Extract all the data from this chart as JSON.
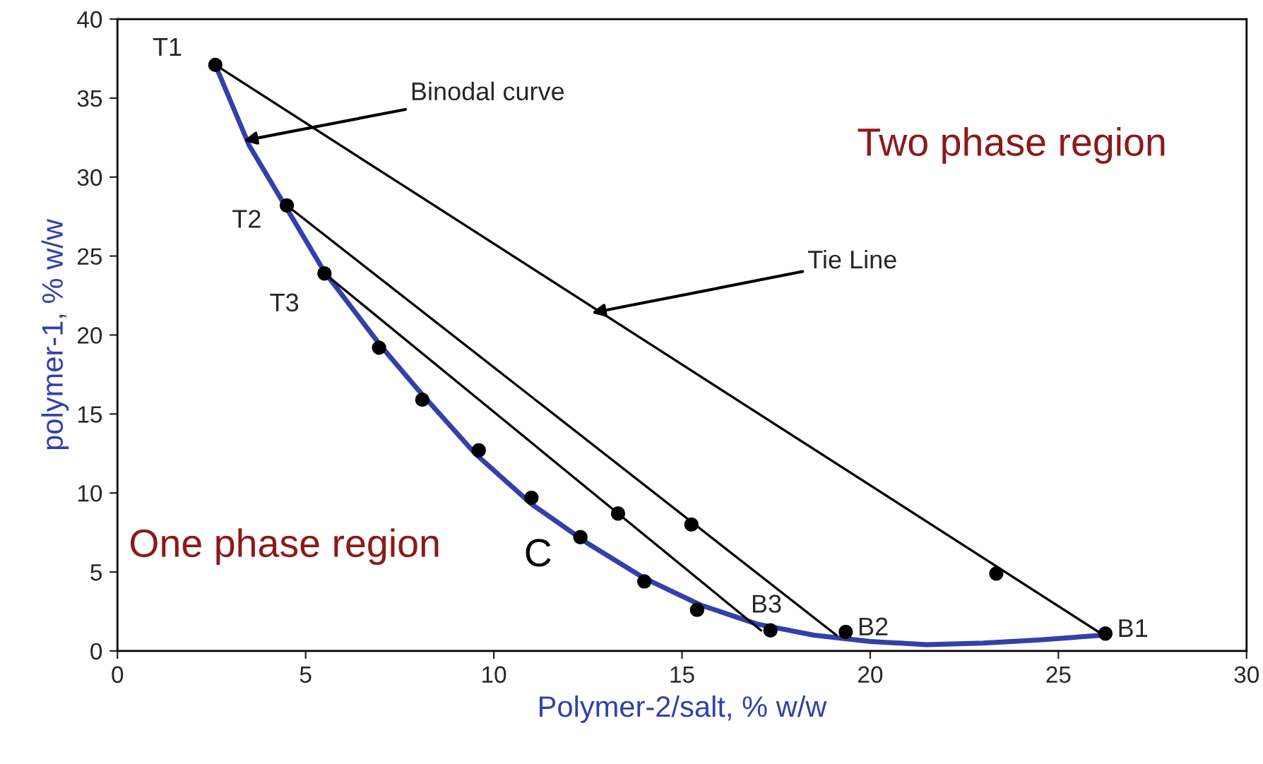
{
  "chart_data": {
    "type": "scatter",
    "xlabel": "Polymer-2/salt, % w/w",
    "ylabel": "polymer-1, % w/w",
    "xlim": [
      0,
      30
    ],
    "xticks": [
      0,
      5,
      10,
      15,
      20,
      25,
      30
    ],
    "ylim": [
      0,
      40
    ],
    "yticks": [
      0,
      5,
      10,
      15,
      20,
      25,
      30,
      35,
      40
    ],
    "grid": false,
    "legend": false,
    "series": [
      {
        "type": "line",
        "color": "#3340a8",
        "marker": "none",
        "x": [
          2.6,
          3.5,
          4.5,
          5.5,
          7,
          8,
          9.5,
          11,
          12.5,
          14,
          15.5,
          17,
          18.5,
          20,
          21.5,
          23,
          24.5,
          26.2
        ],
        "values": [
          37.1,
          32,
          28,
          24,
          19.3,
          16.5,
          12.5,
          9.3,
          6.8,
          4.6,
          2.9,
          1.7,
          1.0,
          0.6,
          0.4,
          0.5,
          0.7,
          1.0
        ]
      },
      {
        "type": "line",
        "color": "#000000",
        "marker": "none",
        "x": [
          2.6,
          26.2
        ],
        "values": [
          37.1,
          1.0
        ]
      },
      {
        "type": "line",
        "color": "#000000",
        "marker": "none",
        "x": [
          4.5,
          19.1
        ],
        "values": [
          28.2,
          1.0
        ]
      },
      {
        "type": "line",
        "color": "#000000",
        "marker": "none",
        "x": [
          5.5,
          17.1
        ],
        "values": [
          23.9,
          1.3
        ]
      },
      {
        "color": "#000000",
        "marker": "circle",
        "x": [
          2.6,
          4.5,
          5.5,
          6.95,
          8.1,
          9.6,
          11.0,
          12.3,
          14.0,
          15.4,
          17.35,
          19.35,
          26.25,
          13.3,
          15.25,
          23.35
        ],
        "values": [
          37.1,
          28.2,
          23.9,
          19.2,
          15.9,
          12.7,
          9.7,
          7.2,
          4.4,
          2.6,
          1.3,
          1.2,
          1.1,
          8.7,
          8.0,
          4.9
        ]
      }
    ],
    "annotations": [
      {
        "text": "T1",
        "x": 2.6,
        "y": 37.1
      },
      {
        "text": "T2",
        "x": 4.5,
        "y": 28.2
      },
      {
        "text": "T3",
        "x": 5.5,
        "y": 23.9
      },
      {
        "text": "B1",
        "x": 26.25,
        "y": 1.05
      },
      {
        "text": "B2",
        "x": 19.35,
        "y": 1.15
      },
      {
        "text": "B3",
        "x": 17.35,
        "y": 1.35
      },
      {
        "text": "Binodal curve",
        "x": 3.35,
        "y": 32.3
      },
      {
        "text": "Tie Line",
        "x": 12.6,
        "y": 21.4
      },
      "Two phase region",
      "One phase region",
      "C"
    ]
  }
}
